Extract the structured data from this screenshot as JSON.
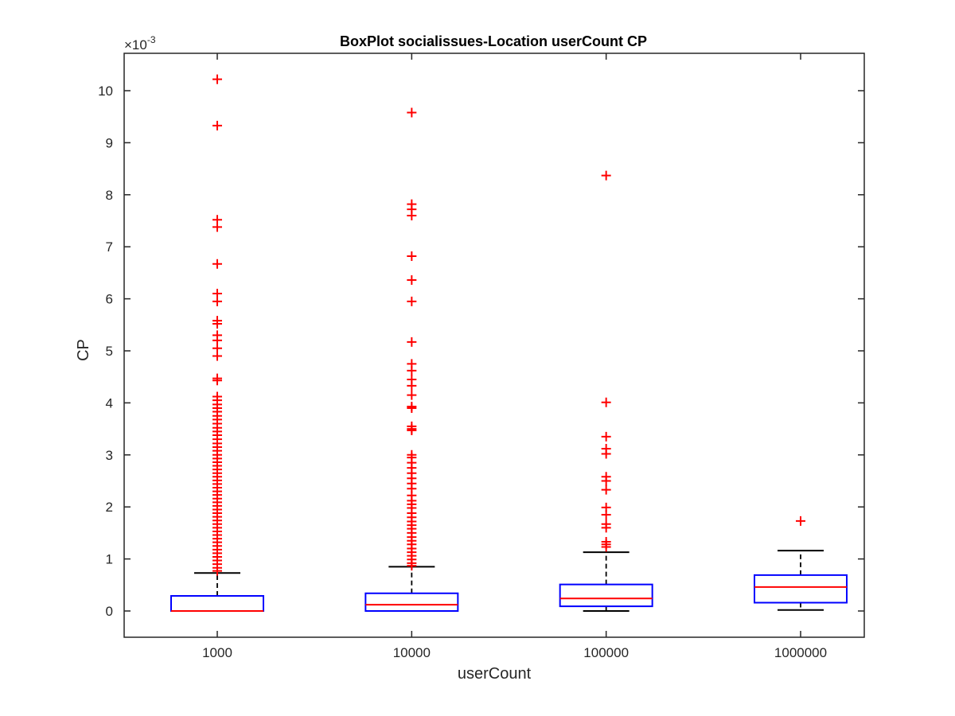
{
  "chart_data": {
    "type": "box",
    "title": "BoxPlot socialissues-Location userCount CP",
    "xlabel": "userCount",
    "ylabel": "CP",
    "exponent_base": "×10",
    "exponent_power": "-3",
    "categories": [
      "1000",
      "10000",
      "100000",
      "1000000"
    ],
    "ylim": [
      -0.5,
      10.5
    ],
    "yticks": [
      0,
      1,
      2,
      3,
      4,
      5,
      6,
      7,
      8,
      9,
      10
    ],
    "ytick_labels": [
      "0",
      "1",
      "2",
      "3",
      "4",
      "5",
      "6",
      "7",
      "8",
      "9",
      "10"
    ],
    "colors": {
      "box": "#0000ff",
      "median": "#ff0000",
      "whisker": "#000000",
      "outlier": "#ff0000",
      "axis": "#262626"
    },
    "boxes": [
      {
        "category": "1000",
        "whisker_low": 0,
        "q1": 0,
        "median": 0,
        "q3": 0.29,
        "whisker_high": 0.73,
        "outliers": [
          10.22,
          9.33,
          7.52,
          7.38,
          6.67,
          6.1,
          5.95,
          5.58,
          5.52,
          5.3,
          5.2,
          5.05,
          4.9,
          4.47,
          4.43,
          4.12,
          4.05,
          3.97,
          3.9,
          3.83,
          3.75,
          3.68,
          3.6,
          3.52,
          3.45,
          3.38,
          3.3,
          3.22,
          3.15,
          3.08,
          3.0,
          2.93,
          2.86,
          2.79,
          2.72,
          2.65,
          2.58,
          2.51,
          2.44,
          2.37,
          2.3,
          2.23,
          2.16,
          2.09,
          2.02,
          1.95,
          1.88,
          1.81,
          1.74,
          1.67,
          1.6,
          1.53,
          1.46,
          1.39,
          1.32,
          1.25,
          1.18,
          1.11,
          1.04,
          0.97,
          0.9,
          0.83,
          0.77
        ]
      },
      {
        "category": "10000",
        "whisker_low": 0,
        "q1": 0,
        "median": 0.12,
        "q3": 0.34,
        "whisker_high": 0.85,
        "outliers": [
          9.58,
          7.82,
          7.72,
          7.6,
          6.82,
          6.36,
          5.95,
          5.17,
          4.75,
          4.62,
          4.45,
          4.33,
          4.15,
          3.93,
          3.9,
          3.55,
          3.5,
          3.47,
          3.0,
          2.95,
          2.85,
          2.75,
          2.65,
          2.55,
          2.45,
          2.35,
          2.22,
          2.12,
          2.05,
          1.98,
          1.88,
          1.8,
          1.72,
          1.65,
          1.58,
          1.5,
          1.42,
          1.35,
          1.28,
          1.2,
          1.13,
          1.06,
          0.99,
          0.92,
          0.87
        ]
      },
      {
        "category": "100000",
        "whisker_low": 0,
        "q1": 0.09,
        "median": 0.24,
        "q3": 0.51,
        "whisker_high": 1.13,
        "outliers": [
          8.37,
          4.01,
          3.35,
          3.12,
          3.02,
          2.58,
          2.5,
          2.33,
          1.99,
          1.85,
          1.67,
          1.6,
          1.33,
          1.28,
          1.23
        ]
      },
      {
        "category": "1000000",
        "whisker_low": 0.02,
        "q1": 0.16,
        "median": 0.46,
        "q3": 0.69,
        "whisker_high": 1.16,
        "outliers": [
          1.73
        ]
      }
    ]
  }
}
